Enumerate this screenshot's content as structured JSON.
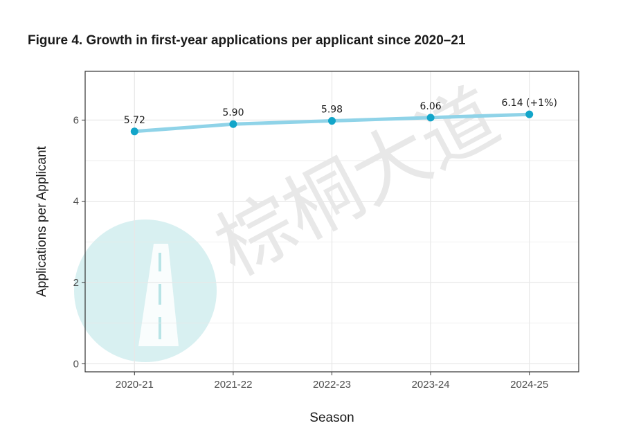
{
  "title": "Figure 4. Growth in first-year applications per applicant since 2020–21",
  "watermark": {
    "text": "棕桐大道",
    "logo_icon": "road-circle-logo-icon",
    "logo_color": "#a8dde0"
  },
  "colors": {
    "line": "#8fd3e8",
    "point": "#12a5c9",
    "grid": "#e8e8e8",
    "panel_border": "#333333"
  },
  "chart_data": {
    "type": "line",
    "categories": [
      "2020-21",
      "2021-22",
      "2022-23",
      "2023-24",
      "2024-25"
    ],
    "values": [
      5.72,
      5.9,
      5.98,
      6.06,
      6.14
    ],
    "data_labels": [
      "5.72",
      "5.90",
      "5.98",
      "6.06",
      "6.14 (+1%)"
    ],
    "xlabel": "Season",
    "ylabel": "Applications per Applicant",
    "ylim": [
      -0.2,
      7.2
    ],
    "yticks": [
      0,
      2,
      4,
      6
    ],
    "grid": true,
    "legend": "none"
  }
}
